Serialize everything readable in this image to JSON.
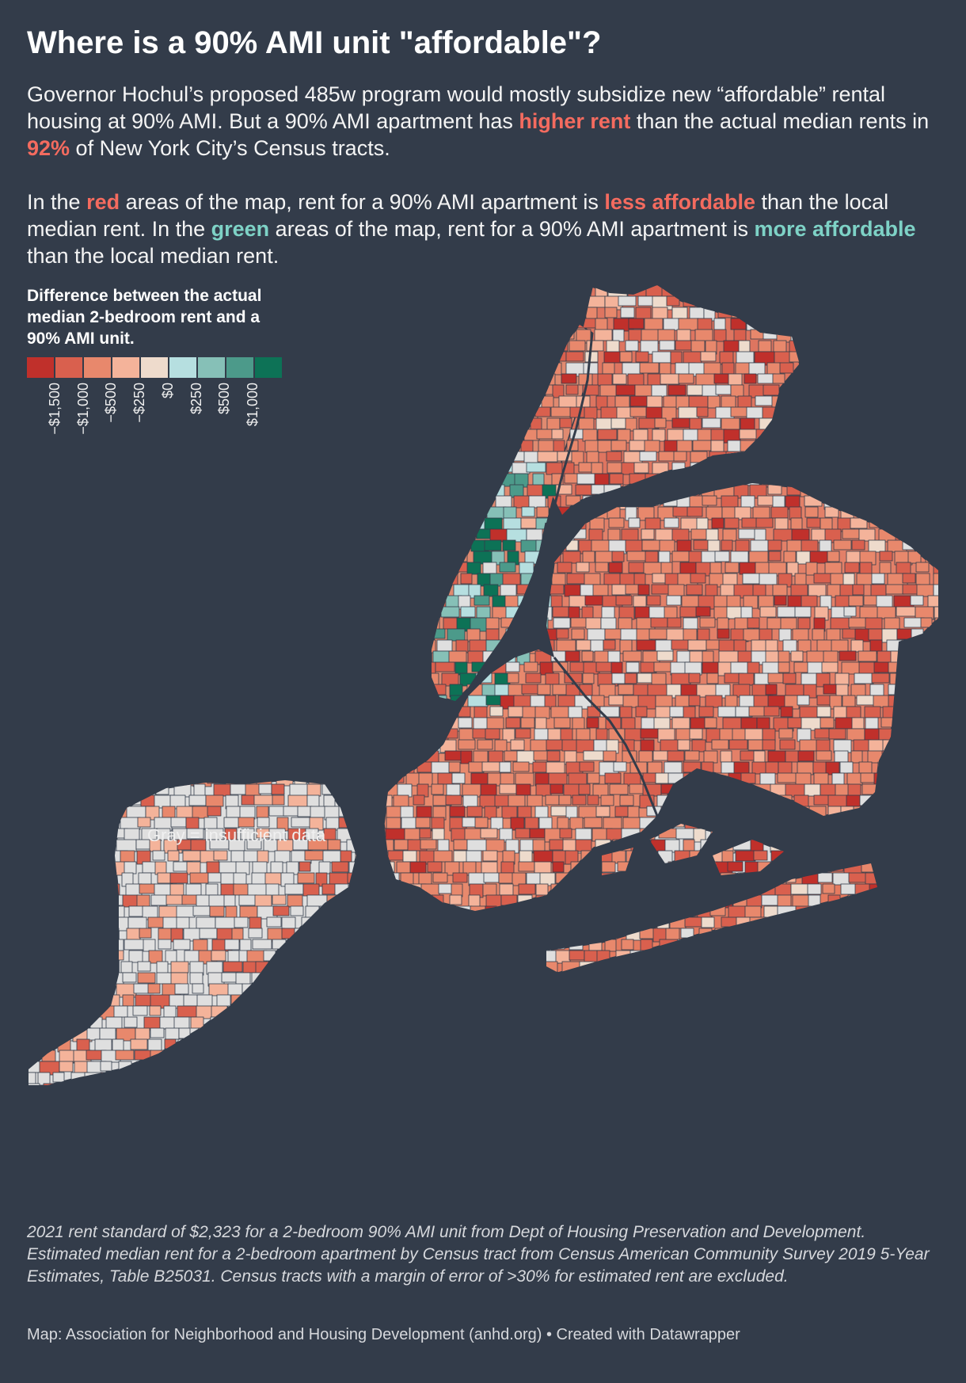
{
  "title": "Where is a 90% AMI unit \"affordable\"?",
  "intro": {
    "p1_a": "Governor Hochul’s proposed 485w program would mostly subsidize new “affordable” rental housing at 90% AMI. But a 90% AMI apartment has ",
    "p1_hl1": "higher rent",
    "p1_b": " than the actual median rents in ",
    "p1_hl2": "92%",
    "p1_c": " of New York City’s Census tracts.",
    "p2_a": "In the ",
    "p2_red": "red",
    "p2_b": " areas of the map, rent for a 90% AMI apartment is ",
    "p2_less": "less affordable",
    "p2_c": " than the local median rent. In the ",
    "p2_green": "green",
    "p2_d": " areas of the map, rent for a 90% AMI apartment is ",
    "p2_more": "more affordable",
    "p2_e": " than the local median rent."
  },
  "legend": {
    "title": "Difference between the actual median 2-bedroom rent and a 90% AMI unit.",
    "colors": [
      "#c0302b",
      "#d9604e",
      "#e8886c",
      "#f4b39a",
      "#eedbcc",
      "#b6dfe0",
      "#86c0b7",
      "#4c9a8a",
      "#0d7256"
    ],
    "ticks": [
      "−$1,500",
      "−$1,000",
      "−$500",
      "−$250",
      "$0",
      "$250",
      "$500",
      "$1,000"
    ]
  },
  "map_note": "Gray = insufficient data",
  "colors": {
    "background": "#333c4a",
    "no_data": "#dfdfdf",
    "water": "#333c4a",
    "highlight_red": "#f46b5f",
    "highlight_green": "#7ed2c6"
  },
  "footnote": "2021 rent standard of $2,323 for a 2-bedroom 90% AMI unit from Dept of Housing Preservation and Development. Estimated median rent for a 2-bedroom apartment by Census tract from Census American Community Survey 2019 5-Year Estimates, Table B25031. Census tracts with a margin of error of >30% for estimated rent are excluded.",
  "credit": "Map: Association for Neighborhood and Housing Development (anhd.org) • Created with Datawrapper"
}
